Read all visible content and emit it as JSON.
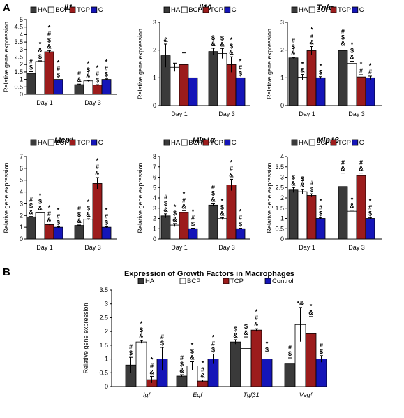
{
  "panels": {
    "a": "A",
    "b": "B"
  },
  "colors": {
    "HA": "#3a3a3a",
    "BCP": "#ffffff",
    "TCP": "#9c1c1c",
    "C": "#1515b8"
  },
  "chart_data": [
    {
      "type": "bar",
      "title": "Il1",
      "ylabel": "Relative gene expression",
      "ylim": [
        0,
        5
      ],
      "yticks": [
        "0",
        "0.5",
        "1",
        "1.5",
        "2",
        "2.5",
        "3",
        "3.5",
        "4",
        "4.5",
        "5"
      ],
      "categories": [
        "Day 1",
        "Day 3"
      ],
      "legend": [
        "HA",
        "BCP",
        "TCP",
        "C"
      ],
      "series": [
        {
          "name": "HA",
          "values": [
            1.4,
            0.65
          ],
          "errors": [
            0.12,
            0.04
          ],
          "annotations": [
            "#\n$",
            "#\n&"
          ]
        },
        {
          "name": "BCP",
          "values": [
            2.2,
            0.9
          ],
          "errors": [
            0.05,
            0.04
          ],
          "annotations": [
            "*\n&\n$",
            "*\n$\n&"
          ]
        },
        {
          "name": "TCP",
          "values": [
            2.85,
            0.62
          ],
          "errors": [
            0.08,
            0.03
          ],
          "annotations": [
            "*\n#\n$\n&",
            "*\n#\n$"
          ]
        },
        {
          "name": "C",
          "values": [
            1.0,
            1.0
          ],
          "errors": [
            0,
            0.04
          ],
          "annotations": [
            "*\n#\n$",
            "*\n#\n$"
          ]
        }
      ]
    },
    {
      "type": "bar",
      "title": "Il10",
      "ylabel": "Relative gene expression",
      "ylim": [
        0,
        3
      ],
      "yticks": [
        "0",
        "1",
        "2",
        "3"
      ],
      "categories": [
        "Day 1",
        "Day 3"
      ],
      "legend": [
        "HA",
        "BCP",
        "TCP",
        "C"
      ],
      "series": [
        {
          "name": "HA",
          "values": [
            1.8,
            1.95
          ],
          "errors": [
            0.42,
            0.12
          ],
          "annotations": [
            "&",
            "$\n&"
          ]
        },
        {
          "name": "BCP",
          "values": [
            1.38,
            1.88
          ],
          "errors": [
            0.15,
            0.18
          ],
          "annotations": [
            "",
            "$\n&"
          ]
        },
        {
          "name": "TCP",
          "values": [
            1.48,
            1.48
          ],
          "errors": [
            0.42,
            0.28
          ],
          "annotations": [
            "",
            "*\n$\n&"
          ]
        },
        {
          "name": "C",
          "values": [
            1.0,
            1.0
          ],
          "errors": [
            0,
            0
          ],
          "annotations": [
            "",
            "*\n#\n$"
          ]
        }
      ]
    },
    {
      "type": "bar",
      "title": "Tnfα",
      "ylabel": "Relative gene expression",
      "ylim": [
        0,
        3
      ],
      "yticks": [
        "0",
        "1",
        "2",
        "3"
      ],
      "categories": [
        "Day 1",
        "Day 3"
      ],
      "legend": [
        "HA",
        "BCP",
        "TCP",
        "C"
      ],
      "series": [
        {
          "name": "HA",
          "values": [
            1.72,
            1.98
          ],
          "errors": [
            0.02,
            0.1
          ],
          "annotations": [
            "#\n$\n&",
            "#\n$\n&"
          ]
        },
        {
          "name": "BCP",
          "values": [
            1.02,
            1.52
          ],
          "errors": [
            0.1,
            0.08
          ],
          "annotations": [
            "*\n&",
            "*\n$\n&"
          ]
        },
        {
          "name": "TCP",
          "values": [
            1.98,
            1.03
          ],
          "errors": [
            0.15,
            0.08
          ],
          "annotations": [
            "*\n#\n&",
            "*\n#"
          ]
        },
        {
          "name": "C",
          "values": [
            1.0,
            1.0
          ],
          "errors": [
            0.04,
            0.06
          ],
          "annotations": [
            "*\n$",
            "*\n#"
          ]
        }
      ]
    },
    {
      "type": "bar",
      "title": "Mcp1",
      "ylabel": "Relative gene expression",
      "ylim": [
        0,
        7
      ],
      "yticks": [
        "0",
        "1",
        "2",
        "3",
        "4",
        "5",
        "6",
        "7"
      ],
      "categories": [
        "Day 1",
        "Day 3"
      ],
      "legend": [
        "HA",
        "BCP",
        "TCP",
        "C"
      ],
      "series": [
        {
          "name": "HA",
          "values": [
            1.88,
            1.15
          ],
          "errors": [
            0.04,
            0.04
          ],
          "annotations": [
            "#\n$\n&",
            "#\n$\n&"
          ]
        },
        {
          "name": "BCP",
          "values": [
            2.22,
            1.68
          ],
          "errors": [
            0.06,
            0.04
          ],
          "annotations": [
            "*\n$\n&",
            "*\n$\n&"
          ]
        },
        {
          "name": "TCP",
          "values": [
            1.22,
            4.72
          ],
          "errors": [
            0.04,
            0.5
          ],
          "annotations": [
            "*\n#\n&",
            "*\n#\n&"
          ]
        },
        {
          "name": "C",
          "values": [
            1.0,
            1.0
          ],
          "errors": [
            0.04,
            0.04
          ],
          "annotations": [
            "*\n#\n$",
            "*\n#\n$"
          ]
        }
      ]
    },
    {
      "type": "bar",
      "title": "Mip1α",
      "ylabel": "Relative gene expression",
      "ylim": [
        0,
        8
      ],
      "yticks": [
        "0",
        "1",
        "2",
        "3",
        "4",
        "5",
        "6",
        "7",
        "8"
      ],
      "categories": [
        "Day 1",
        "Day 3"
      ],
      "legend": [
        "HA",
        "BCP",
        "TCP",
        "C"
      ],
      "series": [
        {
          "name": "HA",
          "values": [
            2.25,
            3.3
          ],
          "errors": [
            0.2,
            0.12
          ],
          "annotations": [
            "#\n$\n&",
            "#\n$\n&"
          ]
        },
        {
          "name": "BCP",
          "values": [
            1.35,
            1.98
          ],
          "errors": [
            0.15,
            0.1
          ],
          "annotations": [
            "*\n$\n&",
            "*\n$\n&"
          ]
        },
        {
          "name": "TCP",
          "values": [
            2.58,
            5.25
          ],
          "errors": [
            0.18,
            0.55
          ],
          "annotations": [
            "*\n#\n&",
            "*\n#\n&"
          ]
        },
        {
          "name": "C",
          "values": [
            1.0,
            1.0
          ],
          "errors": [
            0.05,
            0.05
          ],
          "annotations": [
            "*\n#\n$",
            "*\n#\n$"
          ]
        }
      ]
    },
    {
      "type": "bar",
      "title": "Mip1β",
      "ylabel": "Relative gene expression",
      "ylim": [
        0,
        4
      ],
      "yticks": [
        "0",
        "0.5",
        "1",
        "1.5",
        "2",
        "2.5",
        "3",
        "3.5",
        "4"
      ],
      "categories": [
        "Day 1",
        "Day 3"
      ],
      "legend": [
        "HA",
        "BCP",
        "TCP",
        "C"
      ],
      "series": [
        {
          "name": "HA",
          "values": [
            2.38,
            2.55
          ],
          "errors": [
            0.12,
            0.65
          ],
          "annotations": [
            "$\n&",
            "#\n&"
          ]
        },
        {
          "name": "BCP",
          "values": [
            2.3,
            1.35
          ],
          "errors": [
            0.1,
            0.05
          ],
          "annotations": [
            "$\n&",
            "*\n&"
          ]
        },
        {
          "name": "TCP",
          "values": [
            2.12,
            3.08
          ],
          "errors": [
            0.08,
            0.12
          ],
          "annotations": [
            "#\n$",
            "#\n&"
          ]
        },
        {
          "name": "C",
          "values": [
            1.0,
            1.0
          ],
          "errors": [
            0.04,
            0.04
          ],
          "annotations": [
            "*\n#\n$",
            "*\n#\n$"
          ]
        }
      ]
    },
    {
      "type": "bar",
      "title": "Expression of Growth Factors in Macrophages",
      "ylabel": "Relative gene expression",
      "ylim": [
        0,
        3.5
      ],
      "yticks": [
        "0",
        "0.5",
        "1",
        "1.5",
        "2",
        "2.5",
        "3",
        "3.5"
      ],
      "categories": [
        "Igf",
        "Egf",
        "Tgfβ1",
        "Vegf"
      ],
      "legend": [
        "HA",
        "BCP",
        "TCP",
        "Control"
      ],
      "series": [
        {
          "name": "HA",
          "values": [
            0.78,
            0.38,
            1.62,
            0.82
          ],
          "errors": [
            0.28,
            0.05,
            0.08,
            0.22
          ],
          "annotations": [
            "#\n$",
            "#\n$\n&",
            "$\n&",
            "#\n$"
          ]
        },
        {
          "name": "BCP",
          "values": [
            1.62,
            0.75,
            1.38,
            2.25
          ],
          "errors": [
            0.05,
            0.15,
            0.42,
            0.62
          ],
          "annotations": [
            "*\n$\n&",
            "*\n$\n&",
            "$\n&",
            "*&"
          ]
        },
        {
          "name": "TCP",
          "values": [
            0.25,
            0.2,
            2.05,
            1.92
          ],
          "errors": [
            0.12,
            0.04,
            0.05,
            0.62
          ],
          "annotations": [
            "*\n#\n&",
            "*\n#\n&",
            "*\n#\n&",
            "*\n&"
          ]
        },
        {
          "name": "Control",
          "values": [
            1.0,
            1.0,
            1.0,
            1.0
          ],
          "errors": [
            0.42,
            0.18,
            0.18,
            0.12
          ],
          "annotations": [
            "#\n$",
            "*\n#\n$",
            "*\n$",
            "#\n$"
          ]
        }
      ]
    }
  ]
}
